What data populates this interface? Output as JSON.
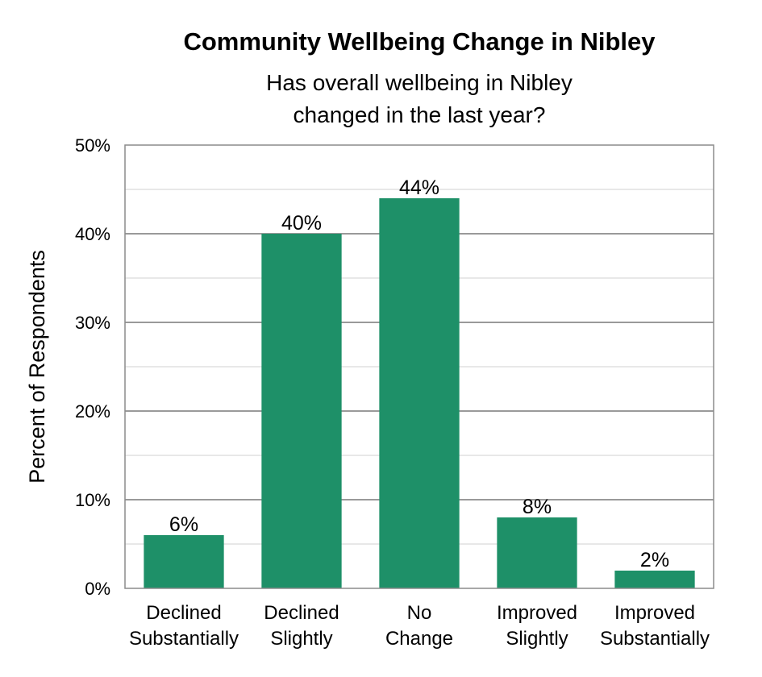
{
  "chart_data": {
    "type": "bar",
    "title": "Community Wellbeing Change in Nibley",
    "subtitle_lines": [
      "Has overall wellbeing in Nibley",
      "changed in the last year?"
    ],
    "ylabel": "Percent of Respondents",
    "xlabel": "",
    "ylim": [
      0,
      50
    ],
    "yticks": [
      0,
      10,
      20,
      30,
      40,
      50
    ],
    "ytick_labels": [
      "0%",
      "10%",
      "20%",
      "30%",
      "40%",
      "50%"
    ],
    "minor_gridlines_every": 5,
    "grid": true,
    "legend": "none",
    "bar_color": "#1e9068",
    "categories": [
      {
        "lines": [
          "Declined",
          "Substantially"
        ]
      },
      {
        "lines": [
          "Declined",
          "Slightly"
        ]
      },
      {
        "lines": [
          "No",
          "Change"
        ]
      },
      {
        "lines": [
          "Improved",
          "Slightly"
        ]
      },
      {
        "lines": [
          "Improved",
          "Substantially"
        ]
      }
    ],
    "values": [
      6,
      40,
      44,
      8,
      2
    ],
    "data_labels": [
      "6%",
      "40%",
      "44%",
      "8%",
      "2%"
    ]
  }
}
